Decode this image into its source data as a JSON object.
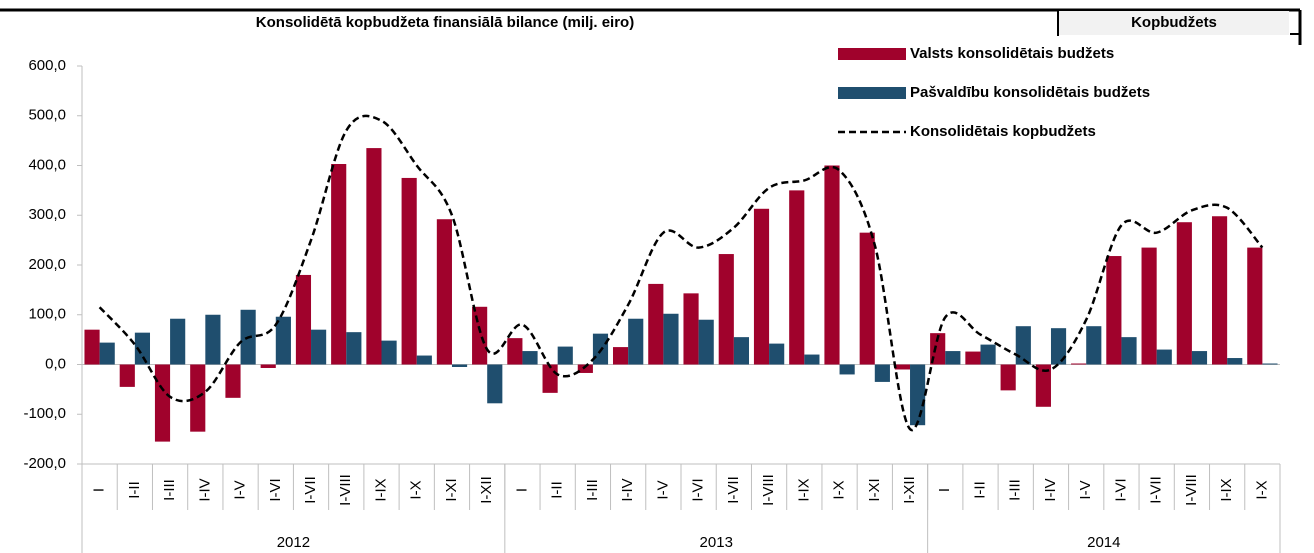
{
  "header": {
    "title": "Konsolidētā kopbudžeta finansiālā bilance (milj. eiro)",
    "tab": "Kopbudžets"
  },
  "chart_data": {
    "type": "bar_line",
    "categories": [
      "I",
      "I-II",
      "I-III",
      "I-IV",
      "I-V",
      "I-VI",
      "I-VII",
      "I-VIII",
      "I-IX",
      "I-X",
      "I-XI",
      "I-XII",
      "I",
      "I-II",
      "I-III",
      "I-IV",
      "I-V",
      "I-VI",
      "I-VII",
      "I-VIII",
      "I-IX",
      "I-X",
      "I-XI",
      "I-XII",
      "I",
      "I-II",
      "I-III",
      "I-IV",
      "I-V",
      "I-VI",
      "I-VII",
      "I-VIII",
      "I-IX",
      "I-X"
    ],
    "groups": [
      {
        "name": "2012",
        "size": 12
      },
      {
        "name": "2013",
        "size": 12
      },
      {
        "name": "2014",
        "size": 10
      }
    ],
    "series": [
      {
        "name": "Valsts konsolidētais budžets",
        "kind": "bar",
        "color": "#a0022c",
        "values": [
          70,
          -45,
          -155,
          -135,
          -67,
          -7,
          180,
          403,
          435,
          375,
          292,
          116,
          53,
          -57,
          -17,
          35,
          162,
          143,
          222,
          313,
          350,
          400,
          265,
          -10,
          63,
          26,
          -52,
          -85,
          2,
          218,
          235,
          286,
          298,
          235
        ]
      },
      {
        "name": "Pašvaldību konsolidētais budžets",
        "kind": "bar",
        "color": "#1f4e6e",
        "values": [
          44,
          64,
          92,
          100,
          110,
          96,
          70,
          65,
          48,
          18,
          -5,
          -78,
          27,
          36,
          62,
          92,
          102,
          90,
          55,
          42,
          20,
          -20,
          -35,
          -122,
          27,
          40,
          77,
          73,
          77,
          55,
          30,
          27,
          13,
          2
        ]
      },
      {
        "name": "Konsolidētais kopbudžets",
        "kind": "line",
        "color": "#000000",
        "values": [
          115,
          40,
          -65,
          -55,
          45,
          80,
          250,
          470,
          490,
          400,
          300,
          30,
          80,
          -20,
          10,
          120,
          265,
          235,
          275,
          355,
          370,
          390,
          240,
          -130,
          95,
          60,
          20,
          -10,
          90,
          280,
          265,
          310,
          315,
          235
        ]
      }
    ],
    "ylim": [
      -200,
      600
    ],
    "yticks": [
      {
        "value": -200,
        "label": "-200,0"
      },
      {
        "value": -100,
        "label": "-100,0"
      },
      {
        "value": 0,
        "label": "0,0"
      },
      {
        "value": 100,
        "label": "100,0"
      },
      {
        "value": 200,
        "label": "200,0"
      },
      {
        "value": 300,
        "label": "300,0"
      },
      {
        "value": 400,
        "label": "400,0"
      },
      {
        "value": 500,
        "label": "500,0"
      },
      {
        "value": 600,
        "label": "600,0"
      }
    ]
  }
}
